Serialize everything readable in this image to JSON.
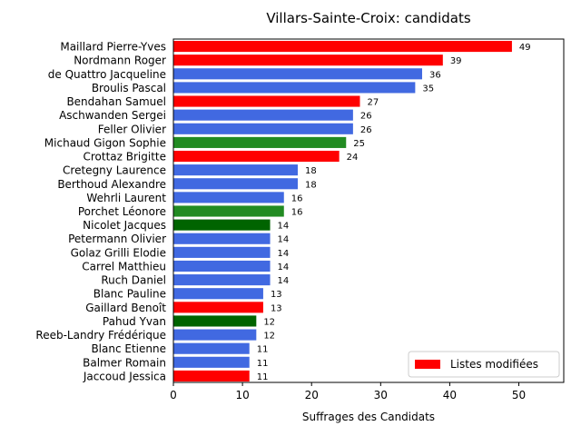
{
  "chart_data": {
    "type": "bar",
    "orientation": "horizontal",
    "title": "Villars-Sainte-Croix: candidats",
    "xlabel": "Suffrages des Candidats",
    "ylabel": "",
    "xlim": [
      0,
      56.5
    ],
    "xticks": [
      0,
      10,
      20,
      30,
      40,
      50
    ],
    "grid": false,
    "legend": {
      "position": "bottom-right",
      "entries": [
        {
          "label": "Listes modifiées",
          "color": "#ff0000"
        }
      ]
    },
    "colors": {
      "red": "#ff0000",
      "blue": "#4169e1",
      "green": "#228b22",
      "darkgreen": "#006400"
    },
    "bars": [
      {
        "name": "Maillard Pierre-Yves",
        "value": 49,
        "color": "red"
      },
      {
        "name": "Nordmann Roger",
        "value": 39,
        "color": "red"
      },
      {
        "name": "de Quattro Jacqueline",
        "value": 36,
        "color": "blue"
      },
      {
        "name": "Broulis Pascal",
        "value": 35,
        "color": "blue"
      },
      {
        "name": "Bendahan Samuel",
        "value": 27,
        "color": "red"
      },
      {
        "name": "Aschwanden Sergei",
        "value": 26,
        "color": "blue"
      },
      {
        "name": "Feller Olivier",
        "value": 26,
        "color": "blue"
      },
      {
        "name": "Michaud Gigon Sophie",
        "value": 25,
        "color": "green"
      },
      {
        "name": "Crottaz Brigitte",
        "value": 24,
        "color": "red"
      },
      {
        "name": "Cretegny Laurence",
        "value": 18,
        "color": "blue"
      },
      {
        "name": "Berthoud Alexandre",
        "value": 18,
        "color": "blue"
      },
      {
        "name": "Wehrli Laurent",
        "value": 16,
        "color": "blue"
      },
      {
        "name": "Porchet Léonore",
        "value": 16,
        "color": "green"
      },
      {
        "name": "Nicolet Jacques",
        "value": 14,
        "color": "darkgreen"
      },
      {
        "name": "Petermann Olivier",
        "value": 14,
        "color": "blue"
      },
      {
        "name": "Golaz Grilli Elodie",
        "value": 14,
        "color": "blue"
      },
      {
        "name": "Carrel Matthieu",
        "value": 14,
        "color": "blue"
      },
      {
        "name": "Ruch Daniel",
        "value": 14,
        "color": "blue"
      },
      {
        "name": "Blanc Pauline",
        "value": 13,
        "color": "blue"
      },
      {
        "name": "Gaillard Benoît",
        "value": 13,
        "color": "red"
      },
      {
        "name": "Pahud Yvan",
        "value": 12,
        "color": "darkgreen"
      },
      {
        "name": "Reeb-Landry Frédérique",
        "value": 12,
        "color": "blue"
      },
      {
        "name": "Blanc Etienne",
        "value": 11,
        "color": "blue"
      },
      {
        "name": "Balmer Romain",
        "value": 11,
        "color": "blue"
      },
      {
        "name": "Jaccoud Jessica",
        "value": 11,
        "color": "red"
      }
    ]
  }
}
